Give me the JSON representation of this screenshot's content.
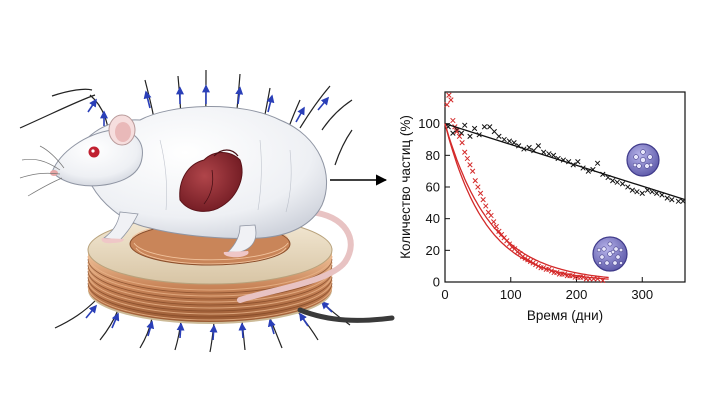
{
  "chart_data": {
    "type": "scatter",
    "xlabel": "Время (дни)",
    "ylabel": "Количество частиц (%)",
    "xlim": [
      0,
      365
    ],
    "ylim": [
      0,
      120
    ],
    "x_ticks": [
      "0",
      "100",
      "200",
      "300"
    ],
    "y_ticks": [
      "0",
      "20",
      "40",
      "60",
      "80",
      "100"
    ],
    "series": [
      {
        "color": "#111111",
        "marker": "x",
        "points": [
          [
            5,
            98
          ],
          [
            12,
            94
          ],
          [
            18,
            96
          ],
          [
            25,
            94
          ],
          [
            30,
            99
          ],
          [
            38,
            92
          ],
          [
            45,
            97
          ],
          [
            52,
            93
          ],
          [
            60,
            98
          ],
          [
            68,
            98
          ],
          [
            75,
            95
          ],
          [
            82,
            92
          ],
          [
            90,
            90
          ],
          [
            98,
            89
          ],
          [
            105,
            88
          ],
          [
            112,
            86
          ],
          [
            120,
            84
          ],
          [
            128,
            85
          ],
          [
            135,
            83
          ],
          [
            142,
            86
          ],
          [
            150,
            82
          ],
          [
            158,
            81
          ],
          [
            165,
            80
          ],
          [
            172,
            78
          ],
          [
            180,
            77
          ],
          [
            188,
            76
          ],
          [
            195,
            74
          ],
          [
            202,
            76
          ],
          [
            210,
            72
          ],
          [
            218,
            70
          ],
          [
            225,
            71
          ],
          [
            232,
            75
          ],
          [
            240,
            68
          ],
          [
            248,
            66
          ],
          [
            255,
            64
          ],
          [
            262,
            63
          ],
          [
            270,
            62
          ],
          [
            278,
            60
          ],
          [
            285,
            58
          ],
          [
            292,
            57
          ],
          [
            300,
            56
          ],
          [
            308,
            58
          ],
          [
            315,
            57
          ],
          [
            322,
            56
          ],
          [
            330,
            55
          ],
          [
            338,
            53
          ],
          [
            345,
            52
          ],
          [
            355,
            51
          ],
          [
            362,
            51
          ]
        ],
        "fit": [
          [
            0,
            100
          ],
          [
            365,
            52
          ]
        ]
      },
      {
        "color": "#d42a2a",
        "marker": "x",
        "points": [
          [
            3,
            112
          ],
          [
            6,
            118
          ],
          [
            9,
            115
          ],
          [
            12,
            102
          ],
          [
            15,
            98
          ],
          [
            18,
            95
          ],
          [
            22,
            92
          ],
          [
            26,
            88
          ],
          [
            30,
            82
          ],
          [
            34,
            78
          ],
          [
            38,
            74
          ],
          [
            42,
            70
          ],
          [
            46,
            64
          ],
          [
            50,
            60
          ],
          [
            54,
            56
          ],
          [
            58,
            52
          ],
          [
            62,
            48
          ],
          [
            66,
            44
          ],
          [
            70,
            42
          ],
          [
            74,
            38
          ],
          [
            78,
            35
          ],
          [
            82,
            32
          ],
          [
            86,
            30
          ],
          [
            90,
            28
          ],
          [
            94,
            26
          ],
          [
            98,
            24
          ],
          [
            102,
            22
          ],
          [
            106,
            21
          ],
          [
            110,
            19
          ],
          [
            114,
            18
          ],
          [
            118,
            16
          ],
          [
            122,
            15
          ],
          [
            126,
            14
          ],
          [
            130,
            13
          ],
          [
            134,
            12
          ],
          [
            138,
            11
          ],
          [
            142,
            10
          ],
          [
            146,
            9
          ],
          [
            150,
            9
          ],
          [
            154,
            8
          ],
          [
            158,
            8
          ],
          [
            162,
            7
          ],
          [
            166,
            6
          ],
          [
            170,
            6
          ],
          [
            174,
            5
          ],
          [
            178,
            5
          ],
          [
            182,
            5
          ],
          [
            186,
            4
          ],
          [
            190,
            4
          ],
          [
            194,
            4
          ],
          [
            198,
            3
          ],
          [
            202,
            3
          ],
          [
            206,
            3
          ],
          [
            210,
            3
          ],
          [
            215,
            2
          ],
          [
            220,
            2
          ],
          [
            226,
            2
          ],
          [
            232,
            2
          ],
          [
            240,
            1
          ]
        ],
        "fits": [
          {
            "tau": 62,
            "xmax": 250
          },
          {
            "tau": 70,
            "xmax": 250
          }
        ]
      }
    ]
  }
}
